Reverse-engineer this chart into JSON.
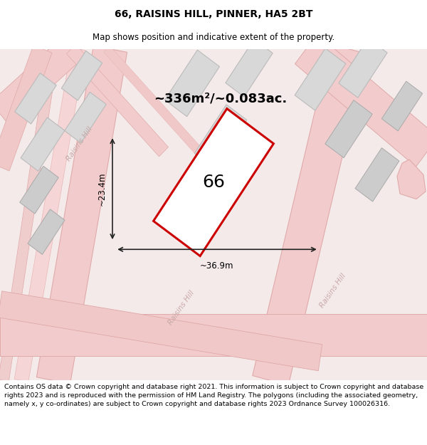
{
  "title": "66, RAISINS HILL, PINNER, HA5 2BT",
  "subtitle": "Map shows position and indicative extent of the property.",
  "area_label": "~336m²/~0.083ac.",
  "property_number": "66",
  "dim_width": "~36.9m",
  "dim_height": "~23.4m",
  "footer": "Contains OS data © Crown copyright and database right 2021. This information is subject to Crown copyright and database rights 2023 and is reproduced with the permission of HM Land Registry. The polygons (including the associated geometry, namely x, y co-ordinates) are subject to Crown copyright and database rights 2023 Ordnance Survey 100026316.",
  "bg_color": "#ffffff",
  "map_bg": "#f5eaea",
  "road_fill": "#f2cccc",
  "road_edge": "#e0aaaa",
  "block_fill": "#d8d8d8",
  "block_edge": "#bbbbbb",
  "property_fill": "#ffffff",
  "property_edge": "#cc0000",
  "dim_line_color": "#222222",
  "road_label_color": "#c8a8a8",
  "title_fontsize": 10,
  "subtitle_fontsize": 8.5,
  "area_fontsize": 13,
  "prop_num_fontsize": 16,
  "footer_fontsize": 6.8
}
